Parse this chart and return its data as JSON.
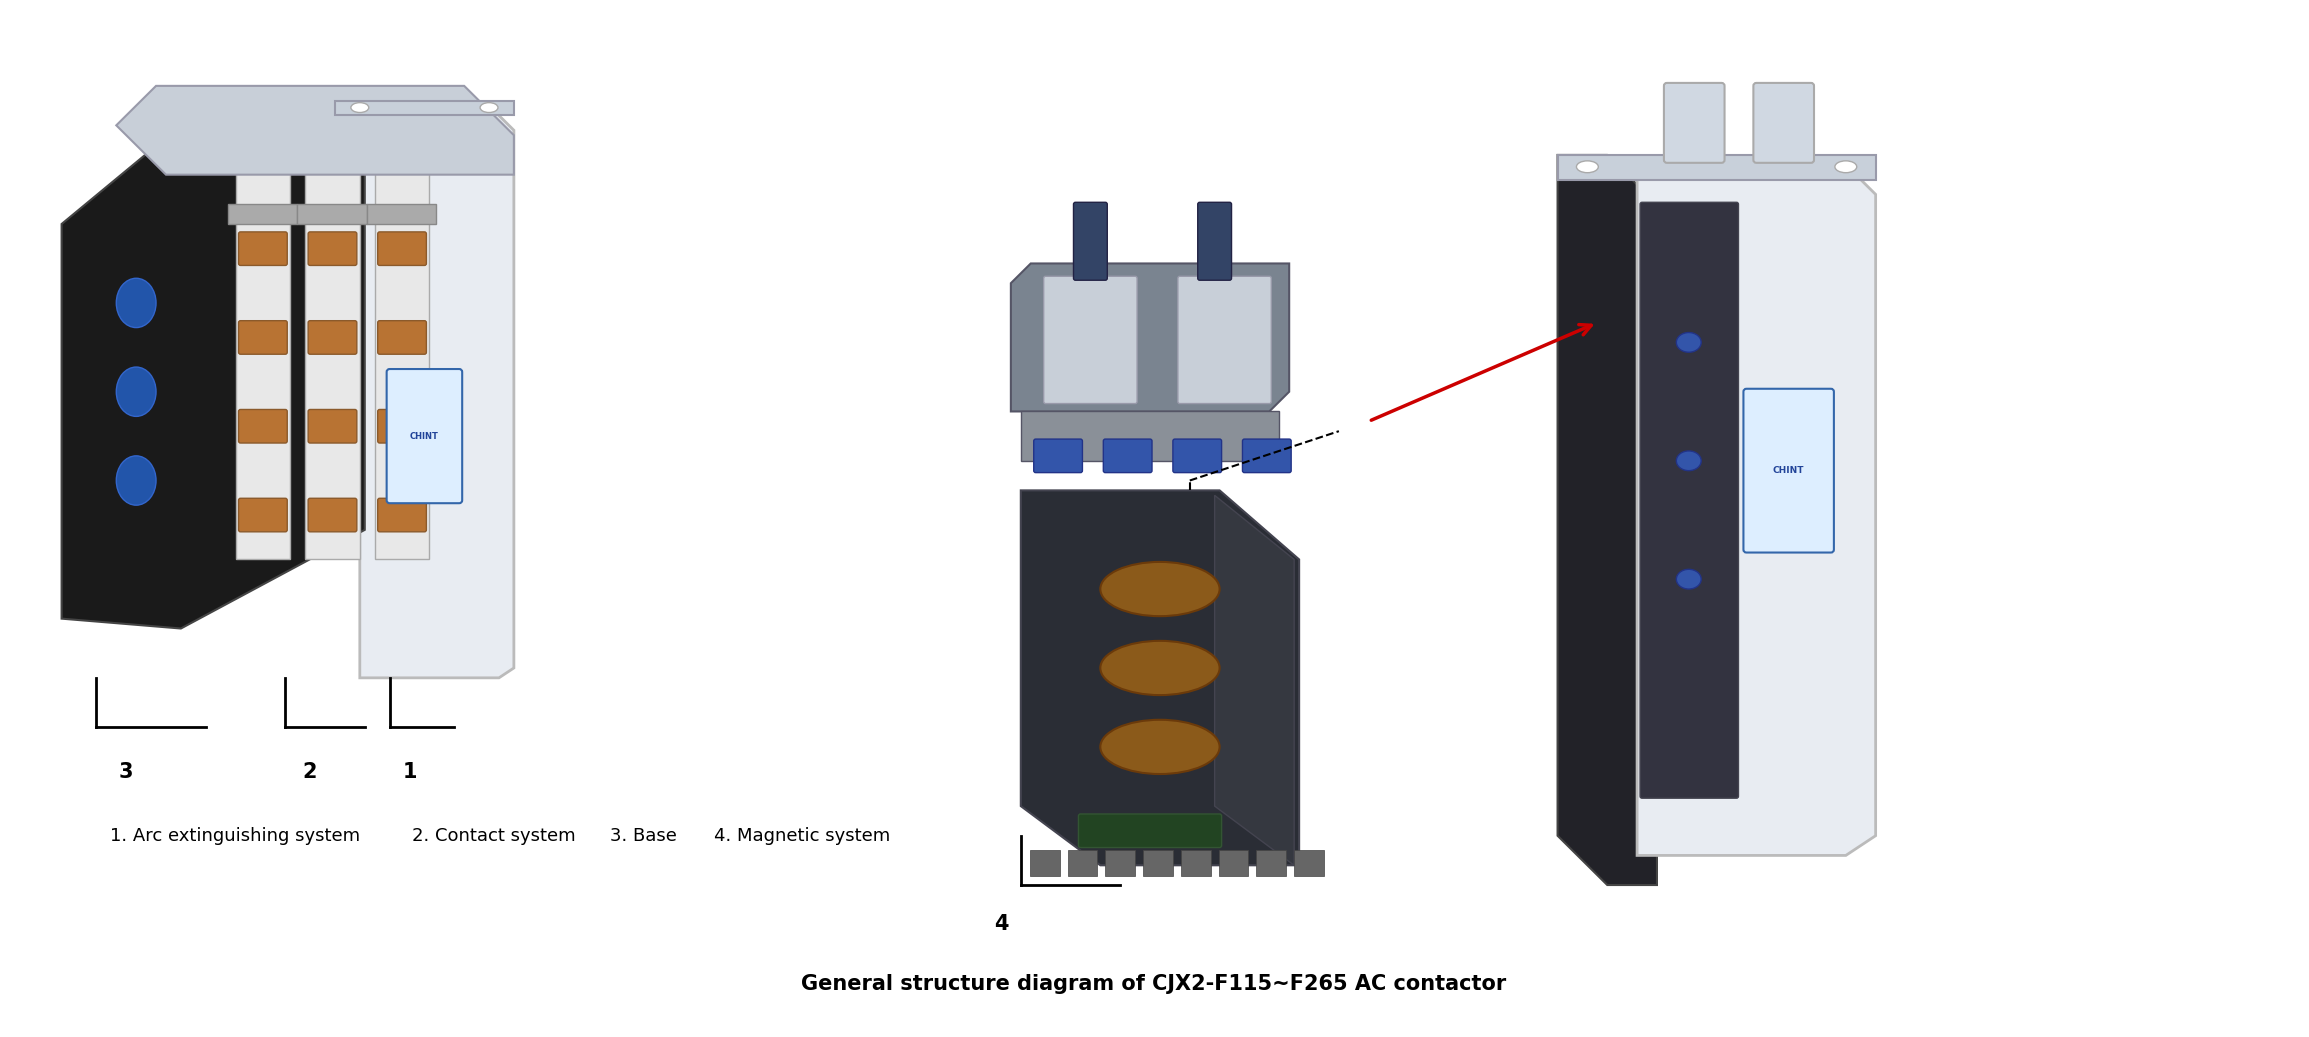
{
  "title": "General structure diagram of CJX2-F115~F265 AC contactor",
  "title_fontsize": 15,
  "title_bold": true,
  "background_color": "#ffffff",
  "caption1": "1. Arc extinguishing system",
  "caption2": "2. Contact system",
  "caption3": "3. Base",
  "caption4": "4. Magnetic system",
  "caption_fontsize": 13,
  "label_fontsize": 15,
  "label_bracket_color": "#000000",
  "arrow_color_red": "#cc0000",
  "arrow_color_black": "#000000"
}
